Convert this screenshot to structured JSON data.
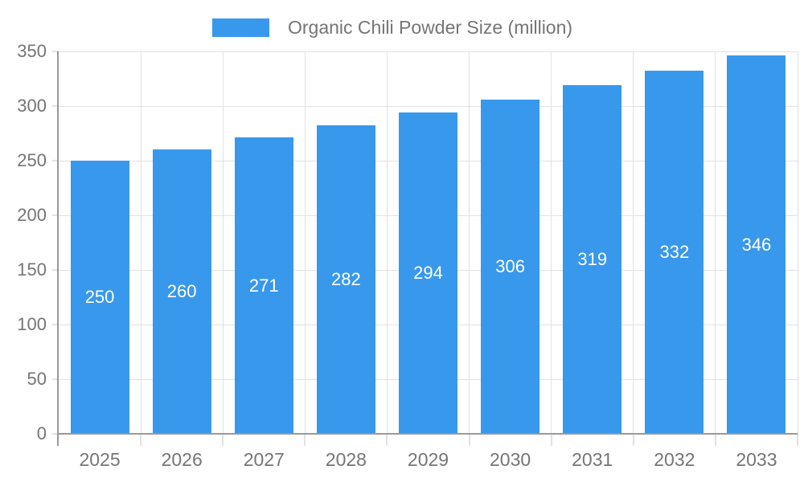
{
  "legend": {
    "label": "Organic Chili Powder Size (million)"
  },
  "colors": {
    "bar": "#3898ec",
    "bar_label": "#ffffff",
    "axis_line": "#999999",
    "gridline": "#e2e2e2",
    "tick_text": "#757575"
  },
  "chart_data": {
    "type": "bar",
    "title": "Organic Chili Powder Size (million)",
    "categories": [
      "2025",
      "2026",
      "2027",
      "2028",
      "2029",
      "2030",
      "2031",
      "2032",
      "2033"
    ],
    "values": [
      250,
      260,
      271,
      282,
      294,
      306,
      319,
      332,
      346
    ],
    "series": [
      {
        "name": "Organic Chili Powder Size (million)",
        "values": [
          250,
          260,
          271,
          282,
          294,
          306,
          319,
          332,
          346
        ]
      }
    ],
    "xlabel": "",
    "ylabel": "",
    "ylim": [
      0,
      350
    ],
    "yticks": [
      0,
      50,
      100,
      150,
      200,
      250,
      300,
      350
    ],
    "grid": true,
    "legend_position": "top",
    "value_labels": "inside-center"
  }
}
